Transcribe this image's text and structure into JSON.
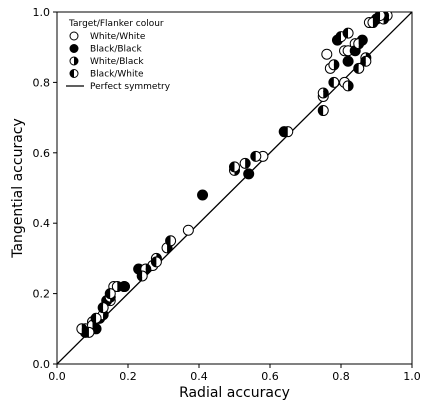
{
  "chart_data": {
    "type": "scatter",
    "xlabel": "Radial accuracy",
    "ylabel": "Tangential accuracy",
    "xlim": [
      0.0,
      1.0
    ],
    "ylim": [
      0.0,
      1.0
    ],
    "xticks": [
      "0.0",
      "0.2",
      "0.4",
      "0.6",
      "0.8",
      "1.0"
    ],
    "yticks": [
      "0.0",
      "0.2",
      "0.4",
      "0.6",
      "0.8",
      "1.0"
    ],
    "grid": false,
    "legend": {
      "title": "Target/Flanker colour",
      "placement": "top-left",
      "entries": [
        {
          "label": "White/White",
          "marker": "circle-white"
        },
        {
          "label": "Black/Black",
          "marker": "circle-black"
        },
        {
          "label": "White/Black",
          "marker": "circle-white-left"
        },
        {
          "label": "Black/White",
          "marker": "circle-black-left"
        },
        {
          "label": "Perfect symmetry",
          "marker": "line"
        }
      ]
    },
    "reference_line": {
      "label": "Perfect symmetry",
      "from": [
        0.0,
        0.0
      ],
      "to": [
        1.0,
        1.0
      ]
    },
    "series": [
      {
        "name": "White/White",
        "style": "circle-white",
        "points": [
          [
            0.08,
            0.1
          ],
          [
            0.1,
            0.12
          ],
          [
            0.12,
            0.13
          ],
          [
            0.15,
            0.18
          ],
          [
            0.16,
            0.22
          ],
          [
            0.19,
            0.22
          ],
          [
            0.24,
            0.26
          ],
          [
            0.27,
            0.28
          ],
          [
            0.37,
            0.38
          ],
          [
            0.58,
            0.59
          ],
          [
            0.76,
            0.88
          ],
          [
            0.81,
            0.89
          ],
          [
            0.82,
            0.89
          ],
          [
            0.84,
            0.91
          ],
          [
            0.88,
            0.97
          ],
          [
            0.9,
            0.98
          ],
          [
            0.93,
            0.99
          ],
          [
            0.75,
            0.76
          ],
          [
            0.77,
            0.84
          ],
          [
            0.81,
            0.8
          ]
        ]
      },
      {
        "name": "Black/Black",
        "style": "circle-black",
        "points": [
          [
            0.08,
            0.09
          ],
          [
            0.11,
            0.1
          ],
          [
            0.12,
            0.13
          ],
          [
            0.14,
            0.18
          ],
          [
            0.19,
            0.22
          ],
          [
            0.23,
            0.27
          ],
          [
            0.41,
            0.48
          ],
          [
            0.54,
            0.54
          ],
          [
            0.64,
            0.66
          ],
          [
            0.79,
            0.92
          ],
          [
            0.84,
            0.89
          ],
          [
            0.86,
            0.92
          ],
          [
            0.9,
            0.98
          ],
          [
            0.92,
            0.99
          ],
          [
            0.82,
            0.86
          ]
        ]
      },
      {
        "name": "White/Black",
        "style": "circle-white-left",
        "points": [
          [
            0.07,
            0.1
          ],
          [
            0.1,
            0.11
          ],
          [
            0.13,
            0.14
          ],
          [
            0.15,
            0.19
          ],
          [
            0.17,
            0.22
          ],
          [
            0.25,
            0.27
          ],
          [
            0.28,
            0.3
          ],
          [
            0.31,
            0.33
          ],
          [
            0.5,
            0.55
          ],
          [
            0.53,
            0.57
          ],
          [
            0.75,
            0.77
          ],
          [
            0.78,
            0.85
          ],
          [
            0.82,
            0.79
          ],
          [
            0.85,
            0.91
          ],
          [
            0.87,
            0.87
          ],
          [
            0.89,
            0.97
          ],
          [
            0.92,
            0.98
          ]
        ]
      },
      {
        "name": "Black/White",
        "style": "circle-black-left",
        "points": [
          [
            0.09,
            0.09
          ],
          [
            0.11,
            0.13
          ],
          [
            0.13,
            0.16
          ],
          [
            0.15,
            0.2
          ],
          [
            0.24,
            0.25
          ],
          [
            0.28,
            0.29
          ],
          [
            0.32,
            0.35
          ],
          [
            0.5,
            0.56
          ],
          [
            0.56,
            0.59
          ],
          [
            0.65,
            0.66
          ],
          [
            0.75,
            0.72
          ],
          [
            0.78,
            0.8
          ],
          [
            0.8,
            0.93
          ],
          [
            0.82,
            0.94
          ],
          [
            0.85,
            0.84
          ],
          [
            0.87,
            0.86
          ],
          [
            0.91,
            0.99
          ]
        ]
      }
    ]
  }
}
